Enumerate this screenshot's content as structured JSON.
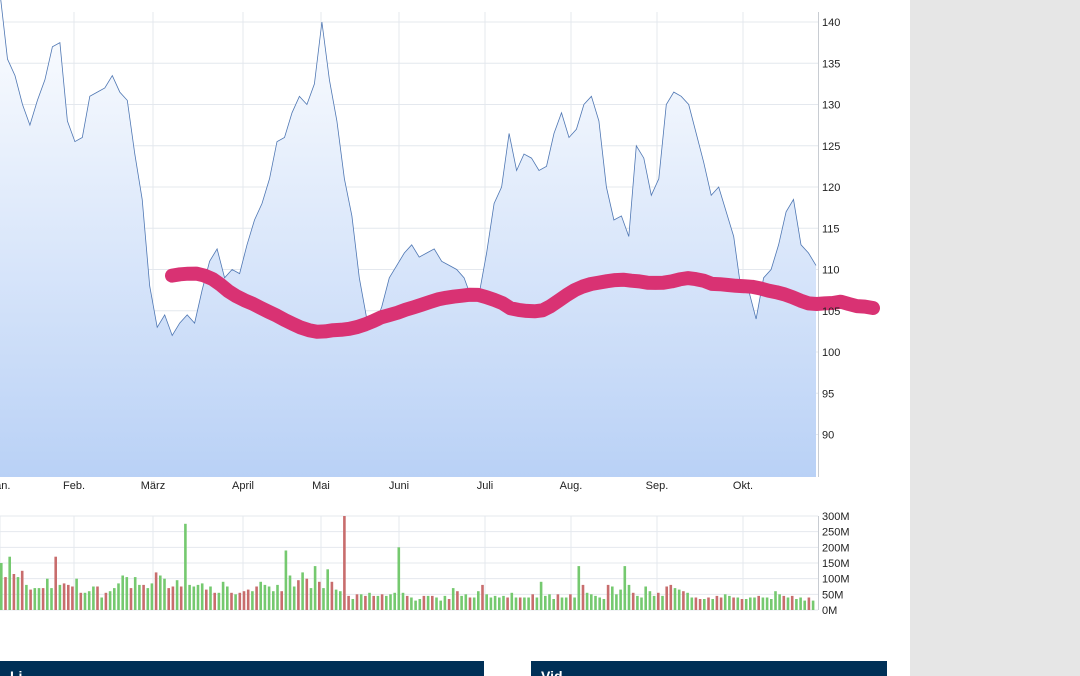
{
  "chart_data": [
    {
      "type": "area",
      "x_ticks": [
        "Jan.",
        "Feb.",
        "März",
        "April",
        "Mai",
        "Juni",
        "Juli",
        "Aug.",
        "Sep.",
        "Okt."
      ],
      "y_ticks": [
        "90",
        "95",
        "100",
        "105",
        "110",
        "115",
        "120",
        "125",
        "130",
        "135",
        "140"
      ],
      "ylim": [
        87,
        144
      ],
      "grid": true,
      "series": [
        {
          "values": [
            143.5,
            135.5,
            133.5,
            130,
            127.5,
            130.5,
            133,
            137,
            137.5,
            128,
            125.5,
            126,
            131,
            131.5,
            132,
            133.5,
            131.5,
            130.5,
            124,
            118.5,
            108,
            103,
            104.5,
            102,
            103.5,
            104.5,
            103.5,
            107.5,
            111,
            112.5,
            109,
            110,
            109.5,
            113,
            116,
            118,
            121,
            125.5,
            126,
            129,
            131,
            130,
            132.5,
            140,
            133,
            128,
            121,
            116.5,
            109,
            104,
            103,
            105.5,
            109,
            110.5,
            112,
            113,
            111.5,
            112,
            112.5,
            111,
            110.5,
            110,
            109,
            106.5,
            107,
            112,
            118,
            120,
            126.5,
            122,
            124,
            123.5,
            122,
            122.5,
            126.5,
            129,
            126,
            127,
            130,
            131,
            128,
            120,
            116,
            116.5,
            114,
            125,
            123.5,
            119,
            121,
            130,
            131.5,
            131,
            130,
            126.5,
            123,
            119,
            120,
            117,
            114,
            107.5,
            107.5,
            104,
            109,
            110,
            113,
            117,
            118.5,
            113,
            112,
            110.5
          ]
        }
      ]
    },
    {
      "type": "bar",
      "y_ticks": [
        "0M",
        "50M",
        "100M",
        "150M",
        "200M",
        "250M",
        "300M"
      ],
      "ylim": [
        0,
        300
      ],
      "series": [
        {
          "values": [
            150,
            105,
            170,
            115,
            105,
            125,
            80,
            65,
            70,
            70,
            70,
            100,
            70,
            170,
            80,
            85,
            80,
            75,
            100,
            55,
            55,
            60,
            75,
            75,
            40,
            55,
            60,
            70,
            85,
            110,
            105,
            70,
            105,
            80,
            80,
            70,
            85,
            120,
            110,
            100,
            70,
            75,
            95,
            75,
            275,
            80,
            75,
            80,
            85,
            65,
            75,
            55,
            55,
            90,
            75,
            55,
            50,
            55,
            60,
            65,
            60,
            75,
            90,
            80,
            75,
            60,
            80,
            60,
            190,
            110,
            75,
            95,
            120,
            100,
            70,
            140,
            90,
            70,
            130,
            90,
            65,
            60,
            300,
            45,
            35,
            50,
            50,
            45,
            55,
            45,
            45,
            50,
            45,
            50,
            55,
            200,
            55,
            45,
            40,
            30,
            35,
            45,
            45,
            45,
            40,
            30,
            45,
            35,
            70,
            60,
            45,
            50,
            40,
            40,
            60,
            80,
            50,
            40,
            45,
            40,
            45,
            40,
            55,
            40,
            40,
            40,
            40,
            50,
            40,
            90,
            45,
            50,
            35,
            50,
            40,
            40,
            50,
            40,
            140,
            80,
            55,
            50,
            45,
            40,
            35,
            80,
            75,
            50,
            65,
            140,
            80,
            55,
            45,
            40,
            75,
            60,
            45,
            55,
            45,
            75,
            80,
            70,
            65,
            60,
            55,
            40,
            40,
            35,
            35,
            40,
            35,
            45,
            40,
            50,
            45,
            40,
            40,
            35,
            35,
            40,
            40,
            45,
            40,
            40,
            35,
            60,
            50,
            45,
            40,
            45,
            35,
            40,
            30,
            40,
            30
          ],
          "colors": [
            "#75c96f",
            "#c86d6d"
          ]
        }
      ]
    }
  ],
  "overlay": {
    "color": "#d93273"
  },
  "panels": {
    "left_title": "Li",
    "right_title": "Vid"
  }
}
